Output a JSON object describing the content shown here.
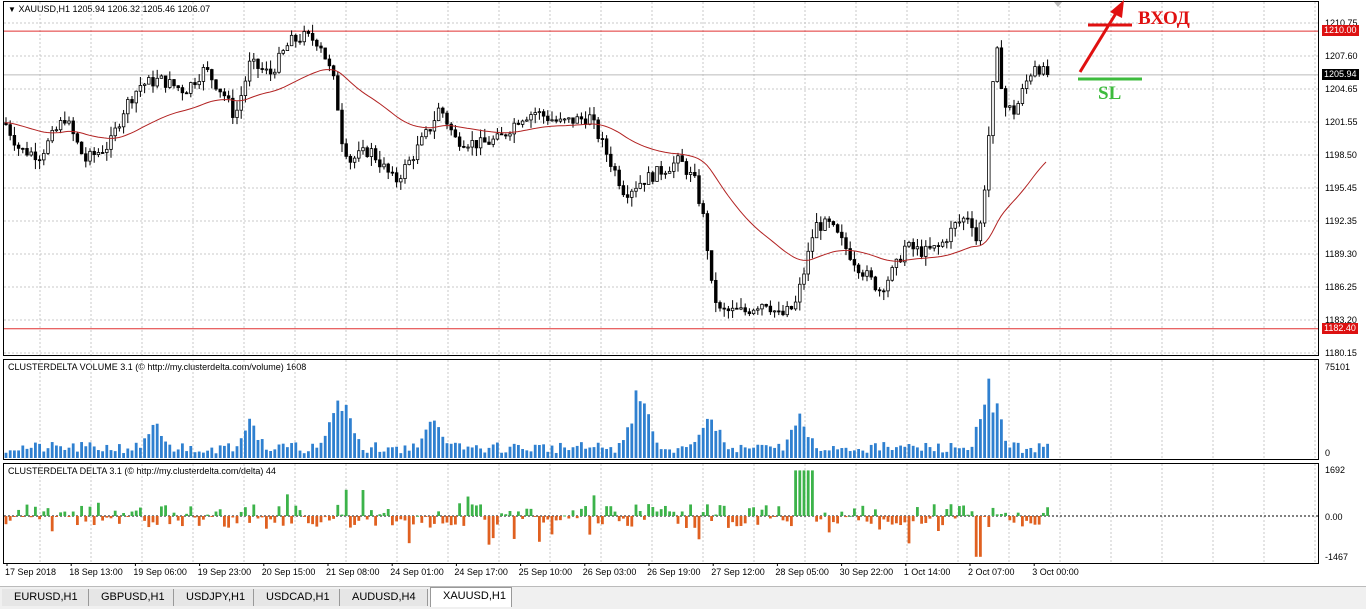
{
  "price": {
    "header": "XAUUSD,H1  1205.94 1206.32 1205.46 1206.07",
    "axis": [
      "1210.75",
      "1207.60",
      "1204.65",
      "1201.55",
      "1198.50",
      "1195.45",
      "1192.35",
      "1189.30",
      "1186.25",
      "1183.20",
      "1180.15"
    ],
    "levels": [
      {
        "label": "1210.00",
        "value": 1210.0
      },
      {
        "label": "1182.40",
        "value": 1182.4
      }
    ],
    "current": {
      "label": "1205.94",
      "value": 1205.94
    },
    "annotation_entry": "ВХОД",
    "annotation_sl": "SL",
    "colors": {
      "levels": "#e03030",
      "ma": "#b22222",
      "entry": "#e01010",
      "sl": "#3dbb3d"
    }
  },
  "volume": {
    "label": "CLUSTERDELTA VOLUME 3.1 (© http://my.clusterdelta.com/volume) 1608",
    "axis_top": "75101",
    "axis_bottom": "0",
    "color": "#2f80d0"
  },
  "delta": {
    "label": "CLUSTERDELTA DELTA 3.1 (© http://my.clusterdelta.com/delta) 44",
    "axis_top": "1692",
    "axis_mid": "0.00",
    "axis_bottom": "-1467",
    "colors": {
      "pos": "#3cb34a",
      "neg": "#e06020"
    }
  },
  "xaxis": [
    "17 Sep 2018",
    "18 Sep 13:00",
    "19 Sep 06:00",
    "19 Sep 23:00",
    "20 Sep 15:00",
    "21 Sep 08:00",
    "24 Sep 01:00",
    "24 Sep 17:00",
    "25 Sep 10:00",
    "26 Sep 03:00",
    "26 Sep 19:00",
    "27 Sep 12:00",
    "28 Sep 05:00",
    "30 Sep 22:00",
    "1 Oct 14:00",
    "2 Oct 07:00",
    "3 Oct 00:00"
  ],
  "tabs": [
    "EURUSD,H1",
    "GBPUSD,H1",
    "USDJPY,H1",
    "USDCAD,H1",
    "AUDUSD,H4",
    "XAUUSD,H1"
  ],
  "active_tab": "XAUUSD,H1"
}
